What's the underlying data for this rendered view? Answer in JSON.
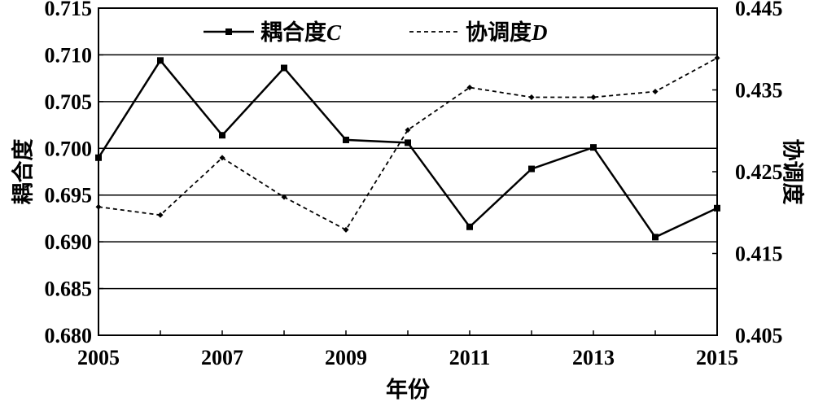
{
  "chart_data": {
    "type": "line",
    "x": [
      2005,
      2006,
      2007,
      2008,
      2009,
      2010,
      2011,
      2012,
      2013,
      2014,
      2015
    ],
    "xticks": [
      "2005",
      "2007",
      "2009",
      "2011",
      "2013",
      "2015"
    ],
    "xlabel": "年份",
    "xlim": [
      2005,
      2015
    ],
    "y_left": {
      "label": "耦合度",
      "lim": [
        0.68,
        0.715
      ],
      "ticks": [
        "0.680",
        "0.685",
        "0.690",
        "0.695",
        "0.700",
        "0.705",
        "0.710",
        "0.715"
      ]
    },
    "y_right": {
      "label": "协调度",
      "lim": [
        0.405,
        0.445
      ],
      "ticks": [
        "0.405",
        "0.415",
        "0.425",
        "0.435",
        "0.445"
      ]
    },
    "grid": true,
    "legend_position": "top",
    "series": [
      {
        "name_text": "耦合度",
        "name_var": "C",
        "axis": "left",
        "style": "solid",
        "marker": "square",
        "values": [
          0.699,
          0.7094,
          0.7014,
          0.7086,
          0.7009,
          0.7006,
          0.6916,
          0.6978,
          0.7001,
          0.6905,
          0.6936
        ]
      },
      {
        "name_text": "协调度",
        "name_var": "D",
        "axis": "right",
        "style": "dashed",
        "marker": "diamond",
        "values": [
          0.4207,
          0.4197,
          0.4267,
          0.4219,
          0.4179,
          0.4301,
          0.4353,
          0.4341,
          0.4341,
          0.4348,
          0.4389
        ]
      }
    ]
  }
}
